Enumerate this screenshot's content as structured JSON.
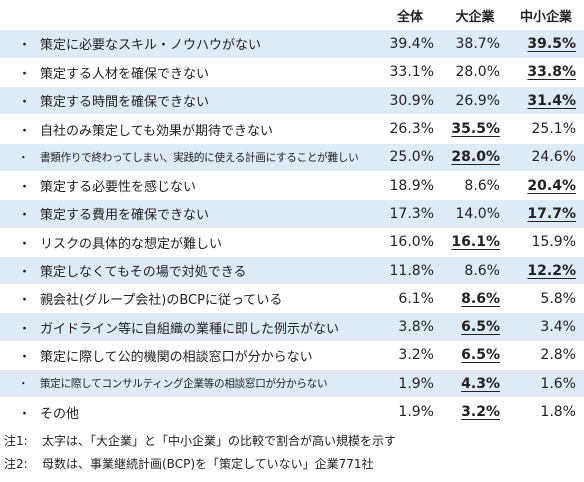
{
  "chart_data": {
    "type": "table",
    "columns": [
      "",
      "全体",
      "大企業",
      "中小企業"
    ],
    "rows": [
      {
        "label": "策定に必要なスキル・ノウハウがない",
        "values": [
          "39.4%",
          "38.7%",
          "39.5%"
        ],
        "highlight": 2
      },
      {
        "label": "策定する人材を確保できない",
        "values": [
          "33.1%",
          "28.0%",
          "33.8%"
        ],
        "highlight": 2
      },
      {
        "label": "策定する時間を確保できない",
        "values": [
          "30.9%",
          "26.9%",
          "31.4%"
        ],
        "highlight": 2
      },
      {
        "label": "自社のみ策定しても効果が期待できない",
        "values": [
          "26.3%",
          "35.5%",
          "25.1%"
        ],
        "highlight": 1
      },
      {
        "label": "書類作りで終わってしまい、実践的に使える計画にすることが難しい",
        "values": [
          "25.0%",
          "28.0%",
          "24.6%"
        ],
        "highlight": 1,
        "small": true
      },
      {
        "label": "策定する必要性を感じない",
        "values": [
          "18.9%",
          "8.6%",
          "20.4%"
        ],
        "highlight": 2
      },
      {
        "label": "策定する費用を確保できない",
        "values": [
          "17.3%",
          "14.0%",
          "17.7%"
        ],
        "highlight": 2
      },
      {
        "label": "リスクの具体的な想定が難しい",
        "values": [
          "16.0%",
          "16.1%",
          "15.9%"
        ],
        "highlight": 1
      },
      {
        "label": "策定しなくてもその場で対処できる",
        "values": [
          "11.8%",
          "8.6%",
          "12.2%"
        ],
        "highlight": 2
      },
      {
        "label": "親会社(グループ会社)のBCPに従っている",
        "values": [
          "6.1%",
          "8.6%",
          "5.8%"
        ],
        "highlight": 1
      },
      {
        "label": "ガイドライン等に自組織の業種に即した例示がない",
        "values": [
          "3.8%",
          "6.5%",
          "3.4%"
        ],
        "highlight": 1
      },
      {
        "label": "策定に際して公的機関の相談窓口が分からない",
        "values": [
          "3.2%",
          "6.5%",
          "2.8%"
        ],
        "highlight": 1
      },
      {
        "label": "策定に際してコンサルティング企業等の相談窓口が分からない",
        "values": [
          "1.9%",
          "4.3%",
          "1.6%"
        ],
        "highlight": 1,
        "small": true
      },
      {
        "label": "その他",
        "values": [
          "1.9%",
          "3.2%",
          "1.8%"
        ],
        "highlight": 1
      }
    ]
  },
  "bullet": "・",
  "notes": [
    {
      "tag": "注1:",
      "text": "太字は、「大企業」と「中小企業」の比較で割合が高い規模を示す"
    },
    {
      "tag": "注2:",
      "text": "母数は、事業継続計画(BCP)を「策定していない」企業771社"
    }
  ]
}
